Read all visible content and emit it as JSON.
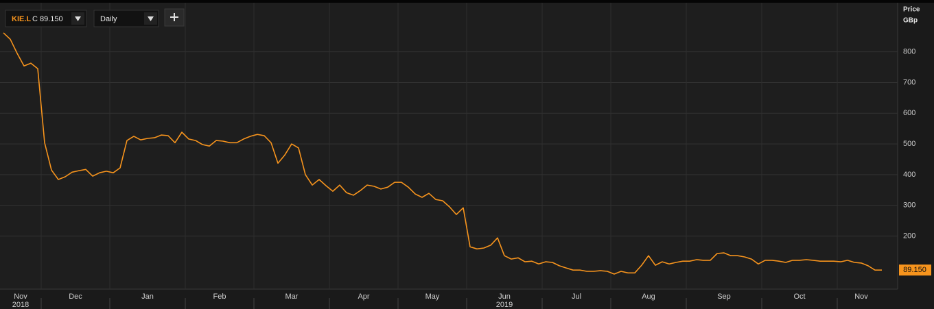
{
  "toolbar": {
    "symbol": "KIE.L",
    "close_label": "C 89.150",
    "interval": "Daily"
  },
  "chart_data": {
    "type": "line",
    "ylabel": "Price",
    "yunit": "GBp",
    "color": "#f7941d",
    "grid": true,
    "ylim": [
      27,
      951
    ],
    "yticks": [
      200,
      300,
      400,
      500,
      600,
      700,
      800
    ],
    "last_value_label": "89.150",
    "xticks": [
      {
        "value": "2018-11",
        "label": "Nov"
      },
      {
        "value": "2018-12",
        "label": "Dec"
      },
      {
        "value": "2019-01",
        "label": "Jan"
      },
      {
        "value": "2019-02",
        "label": "Feb"
      },
      {
        "value": "2019-03",
        "label": "Mar"
      },
      {
        "value": "2019-04",
        "label": "Apr"
      },
      {
        "value": "2019-05",
        "label": "May"
      },
      {
        "value": "2019-06",
        "label": "Jun"
      },
      {
        "value": "2019-07",
        "label": "Jul"
      },
      {
        "value": "2019-08",
        "label": "Aug"
      },
      {
        "value": "2019-09",
        "label": "Sep"
      },
      {
        "value": "2019-10",
        "label": "Oct"
      },
      {
        "value": "2019-11",
        "label": "Nov"
      }
    ],
    "year_labels": [
      {
        "value": "2018-11",
        "label": "2018"
      },
      {
        "value": "2019-06",
        "label": "2019"
      }
    ],
    "x": [
      "2018-11",
      "2018-11",
      "2018-11",
      "2018-11",
      "2018-11",
      "2018-11",
      "2018-12",
      "2018-12",
      "2018-12",
      "2018-12",
      "2018-12",
      "2018-12",
      "2018-12",
      "2018-12",
      "2018-12",
      "2018-12",
      "2019-01",
      "2019-01",
      "2019-01",
      "2019-01",
      "2019-01",
      "2019-01",
      "2019-01",
      "2019-01",
      "2019-01",
      "2019-01",
      "2019-01",
      "2019-02",
      "2019-02",
      "2019-02",
      "2019-02",
      "2019-02",
      "2019-02",
      "2019-02",
      "2019-02",
      "2019-02",
      "2019-02",
      "2019-03",
      "2019-03",
      "2019-03",
      "2019-03",
      "2019-03",
      "2019-03",
      "2019-03",
      "2019-03",
      "2019-03",
      "2019-03",
      "2019-03",
      "2019-04",
      "2019-04",
      "2019-04",
      "2019-04",
      "2019-04",
      "2019-04",
      "2019-04",
      "2019-04",
      "2019-04",
      "2019-04",
      "2019-05",
      "2019-05",
      "2019-05",
      "2019-05",
      "2019-05",
      "2019-05",
      "2019-05",
      "2019-05",
      "2019-05",
      "2019-05",
      "2019-06",
      "2019-06",
      "2019-06",
      "2019-06",
      "2019-06",
      "2019-06",
      "2019-06",
      "2019-06",
      "2019-06",
      "2019-06",
      "2019-06",
      "2019-07",
      "2019-07",
      "2019-07",
      "2019-07",
      "2019-07",
      "2019-07",
      "2019-07",
      "2019-07",
      "2019-07",
      "2019-07",
      "2019-08",
      "2019-08",
      "2019-08",
      "2019-08",
      "2019-08",
      "2019-08",
      "2019-08",
      "2019-08",
      "2019-08",
      "2019-08",
      "2019-08",
      "2019-09",
      "2019-09",
      "2019-09",
      "2019-09",
      "2019-09",
      "2019-09",
      "2019-09",
      "2019-09",
      "2019-09",
      "2019-09",
      "2019-09",
      "2019-10",
      "2019-10",
      "2019-10",
      "2019-10",
      "2019-10",
      "2019-10",
      "2019-10",
      "2019-10",
      "2019-10",
      "2019-10",
      "2019-10",
      "2019-11",
      "2019-11",
      "2019-11",
      "2019-11",
      "2019-11",
      "2019-11",
      "2019-11"
    ],
    "values": [
      862,
      841,
      795,
      754,
      763,
      745,
      504,
      415,
      384,
      393,
      408,
      413,
      417,
      395,
      406,
      411,
      406,
      422,
      511,
      525,
      513,
      518,
      520,
      529,
      527,
      504,
      538,
      516,
      511,
      498,
      493,
      511,
      509,
      504,
      504,
      516,
      525,
      531,
      527,
      504,
      437,
      464,
      500,
      487,
      400,
      366,
      384,
      364,
      346,
      366,
      341,
      333,
      348,
      366,
      362,
      353,
      359,
      375,
      375,
      359,
      337,
      326,
      339,
      319,
      315,
      295,
      270,
      292,
      165,
      158,
      161,
      170,
      194,
      136,
      125,
      129,
      116,
      118,
      109,
      116,
      114,
      103,
      96,
      89,
      89,
      85,
      85,
      87,
      85,
      76,
      85,
      80,
      80,
      105,
      136,
      105,
      116,
      109,
      114,
      118,
      118,
      123,
      121,
      121,
      143,
      145,
      136,
      136,
      132,
      125,
      109,
      121,
      121,
      118,
      114,
      121,
      121,
      123,
      121,
      118,
      118,
      118,
      116,
      121,
      114,
      112,
      103,
      89,
      89.15
    ]
  }
}
